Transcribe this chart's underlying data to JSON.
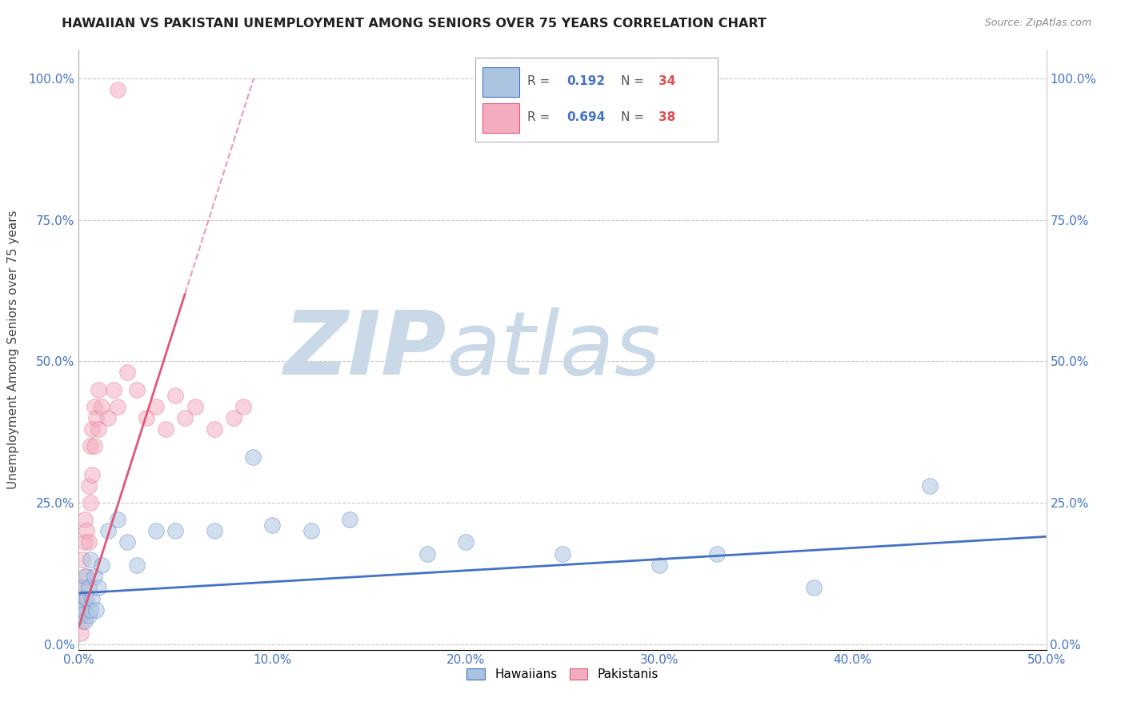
{
  "title": "HAWAIIAN VS PAKISTANI UNEMPLOYMENT AMONG SENIORS OVER 75 YEARS CORRELATION CHART",
  "source": "Source: ZipAtlas.com",
  "xlim": [
    0.0,
    0.5
  ],
  "ylim": [
    -0.01,
    1.05
  ],
  "hawaiian_R": 0.192,
  "hawaiian_N": 34,
  "pakistani_R": 0.694,
  "pakistani_N": 38,
  "hawaiian_color": "#aac4e0",
  "pakistani_color": "#f4adc0",
  "hawaiian_line_color": "#4472c4",
  "pakistani_line_color": "#e05878",
  "watermark_zip": "ZIP",
  "watermark_atlas": "atlas",
  "watermark_color_zip": "#c5d5e5",
  "watermark_color_atlas": "#c5d5e5",
  "hawaiian_x": [
    0.001,
    0.001,
    0.002,
    0.002,
    0.003,
    0.003,
    0.004,
    0.005,
    0.005,
    0.006,
    0.006,
    0.007,
    0.008,
    0.009,
    0.01,
    0.012,
    0.015,
    0.02,
    0.025,
    0.03,
    0.04,
    0.05,
    0.07,
    0.09,
    0.1,
    0.12,
    0.14,
    0.18,
    0.2,
    0.25,
    0.3,
    0.33,
    0.38,
    0.44
  ],
  "hawaiian_y": [
    0.05,
    0.08,
    0.06,
    0.1,
    0.12,
    0.04,
    0.08,
    0.05,
    0.1,
    0.06,
    0.15,
    0.08,
    0.12,
    0.06,
    0.1,
    0.14,
    0.2,
    0.22,
    0.18,
    0.14,
    0.2,
    0.2,
    0.2,
    0.33,
    0.21,
    0.2,
    0.22,
    0.16,
    0.18,
    0.16,
    0.14,
    0.16,
    0.1,
    0.28
  ],
  "pakistani_x": [
    0.001,
    0.001,
    0.001,
    0.002,
    0.002,
    0.002,
    0.003,
    0.003,
    0.003,
    0.004,
    0.004,
    0.005,
    0.005,
    0.006,
    0.006,
    0.007,
    0.007,
    0.008,
    0.008,
    0.009,
    0.01,
    0.01,
    0.012,
    0.015,
    0.018,
    0.02,
    0.025,
    0.03,
    0.035,
    0.04,
    0.045,
    0.05,
    0.055,
    0.06,
    0.07,
    0.08,
    0.085,
    0.02
  ],
  "pakistani_y": [
    0.02,
    0.05,
    0.08,
    0.04,
    0.1,
    0.15,
    0.08,
    0.18,
    0.22,
    0.12,
    0.2,
    0.18,
    0.28,
    0.25,
    0.35,
    0.3,
    0.38,
    0.35,
    0.42,
    0.4,
    0.38,
    0.45,
    0.42,
    0.4,
    0.45,
    0.42,
    0.48,
    0.45,
    0.4,
    0.42,
    0.38,
    0.44,
    0.4,
    0.42,
    0.38,
    0.4,
    0.42,
    0.98
  ],
  "pk_trend_x0": 0.0,
  "pk_trend_y0": 0.03,
  "pk_trend_x1": 0.055,
  "pk_trend_y1": 0.62,
  "hw_trend_x0": 0.0,
  "hw_trend_y0": 0.09,
  "hw_trend_x1": 0.5,
  "hw_trend_y1": 0.19
}
